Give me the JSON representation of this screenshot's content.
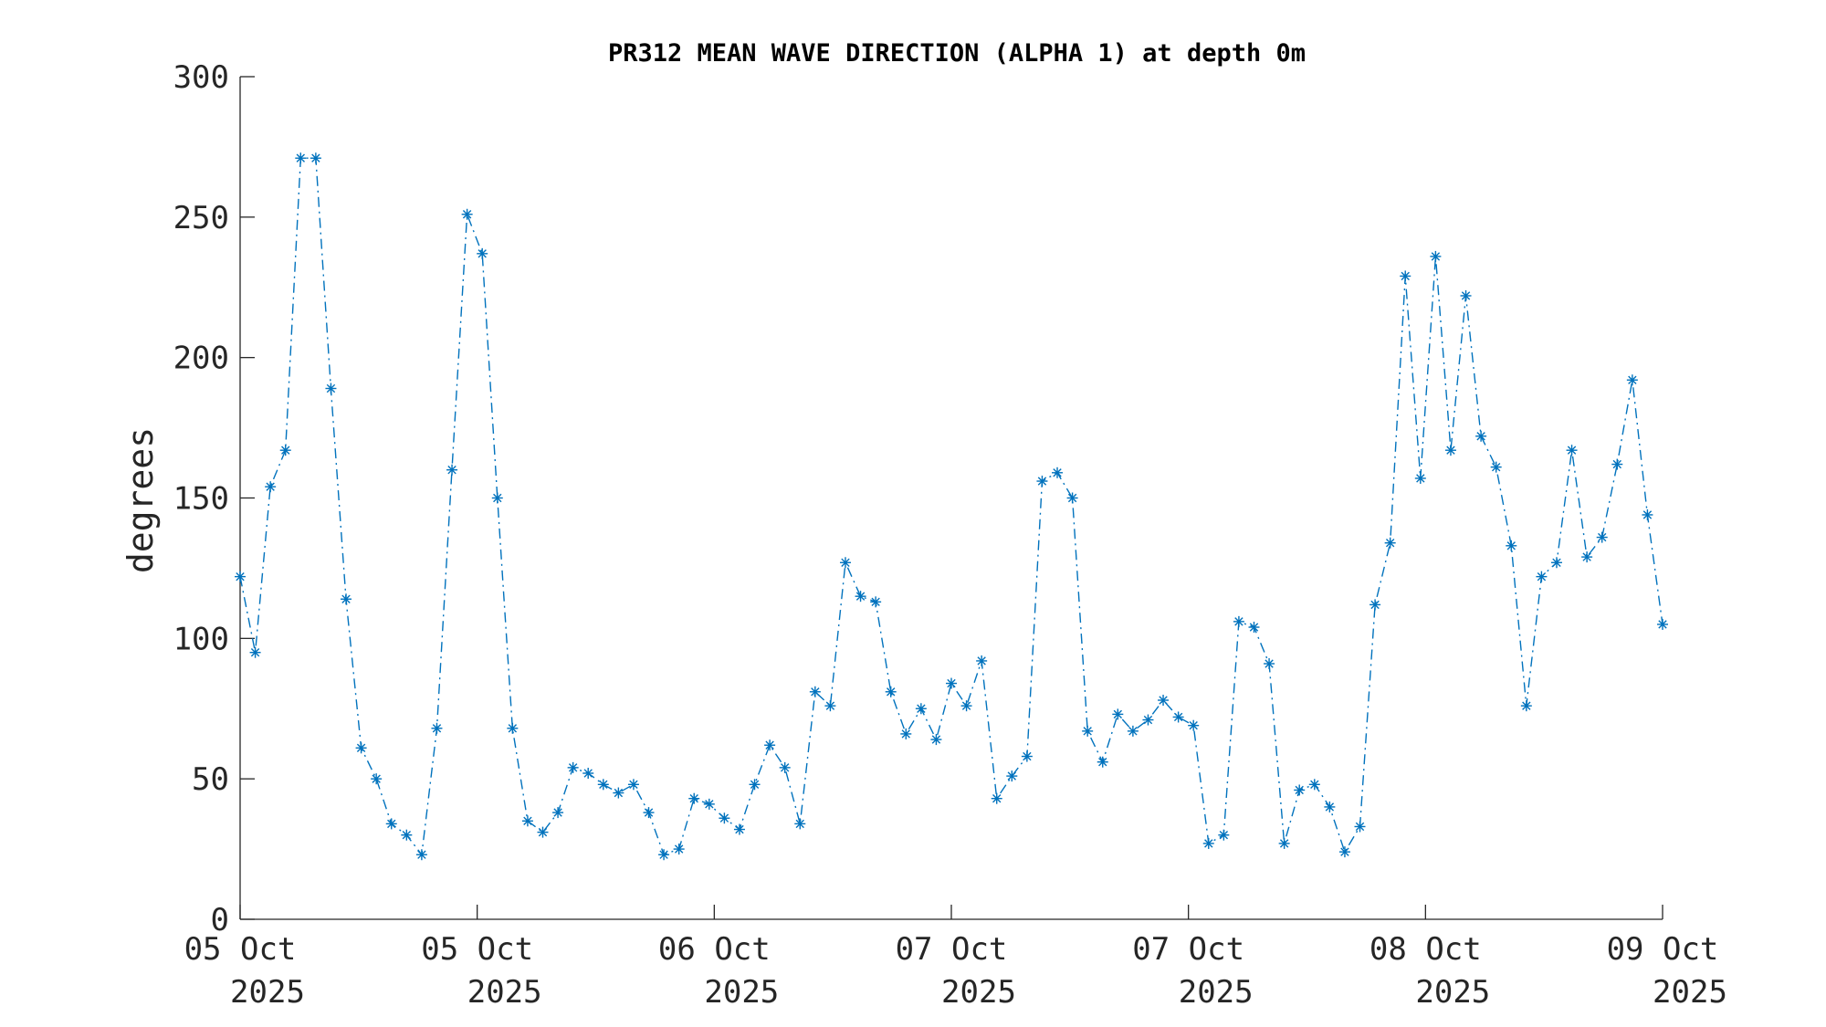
{
  "chart_data": {
    "type": "line",
    "title": "PR312 MEAN WAVE DIRECTION (ALPHA 1) at depth 0m",
    "xlabel": "",
    "ylabel": "degrees",
    "ylim": [
      0,
      300
    ],
    "yticks": [
      "0",
      "50",
      "100",
      "150",
      "200",
      "250",
      "300"
    ],
    "xticks": [
      {
        "line1": "05 Oct",
        "line2": "2025"
      },
      {
        "line1": "05 Oct",
        "line2": "2025"
      },
      {
        "line1": "06 Oct",
        "line2": "2025"
      },
      {
        "line1": "07 Oct",
        "line2": "2025"
      },
      {
        "line1": "07 Oct",
        "line2": "2025"
      },
      {
        "line1": "08 Oct",
        "line2": "2025"
      },
      {
        "line1": "09 Oct",
        "line2": "2025"
      }
    ],
    "grid": false,
    "line_style": "dash-dot",
    "marker": "asterisk",
    "color": "#0072BD",
    "series": [
      {
        "values": [
          122,
          95,
          154,
          167,
          271,
          271,
          189,
          114,
          61,
          50,
          34,
          30,
          23,
          68,
          160,
          251,
          237,
          150,
          68,
          35,
          31,
          38,
          54,
          52,
          48,
          45,
          48,
          38,
          23,
          25,
          43,
          41,
          36,
          32,
          48,
          62,
          54,
          34,
          81,
          76,
          127,
          115,
          113,
          81,
          66,
          75,
          64,
          84,
          76,
          92,
          43,
          51,
          58,
          156,
          159,
          150,
          67,
          56,
          73,
          67,
          71,
          78,
          72,
          69,
          27,
          30,
          106,
          104,
          91,
          27,
          46,
          48,
          40,
          24,
          33,
          112,
          134,
          229,
          157,
          236,
          167,
          222,
          172,
          161,
          133,
          76,
          122,
          127,
          167,
          129,
          136,
          162,
          192,
          144,
          105
        ]
      }
    ]
  }
}
